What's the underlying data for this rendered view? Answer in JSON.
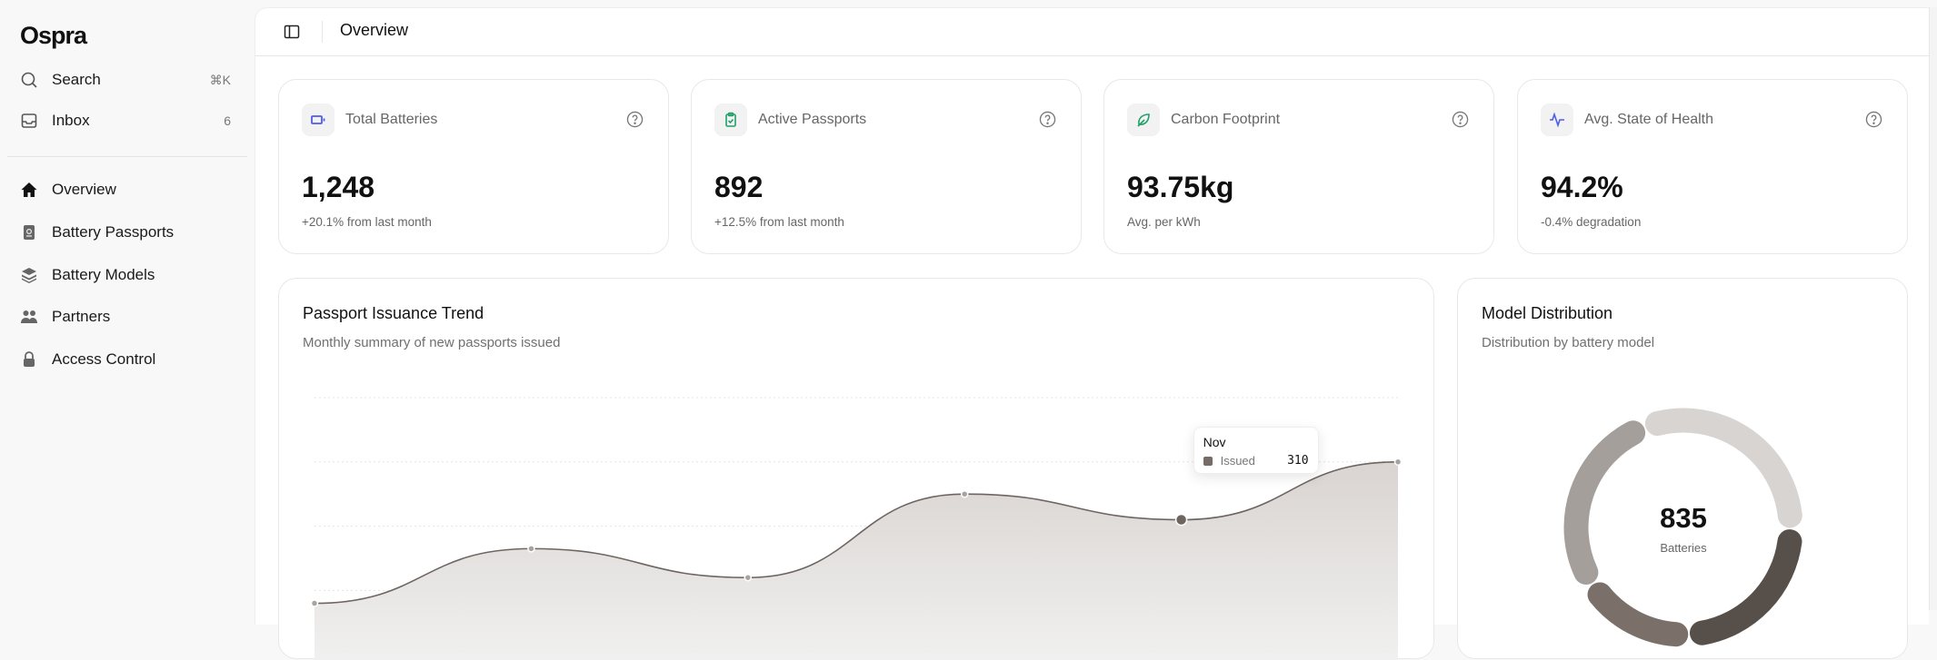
{
  "brand": {
    "name": "Ospra"
  },
  "sidebar": {
    "search": {
      "label": "Search",
      "shortcut": "⌘K"
    },
    "inbox": {
      "label": "Inbox",
      "count": "6"
    },
    "items": [
      {
        "label": "Overview",
        "icon": "home-icon",
        "active": true
      },
      {
        "label": "Battery Passports",
        "icon": "passport-icon"
      },
      {
        "label": "Battery Models",
        "icon": "layers-icon"
      },
      {
        "label": "Partners",
        "icon": "users-icon"
      },
      {
        "label": "Access Control",
        "icon": "lock-icon"
      }
    ]
  },
  "header": {
    "title": "Overview"
  },
  "stats": [
    {
      "label": "Total Batteries",
      "value": "1,248",
      "sub": "+20.1% from last month",
      "icon": "battery-icon",
      "color": "#4f5bea"
    },
    {
      "label": "Active Passports",
      "value": "892",
      "sub": "+12.5% from last month",
      "icon": "clipboard-check-icon",
      "color": "#22a06b"
    },
    {
      "label": "Carbon Footprint",
      "value": "93.75kg",
      "sub": "Avg. per kWh",
      "icon": "leaf-icon",
      "color": "#22a06b"
    },
    {
      "label": "Avg. State of Health",
      "value": "94.2%",
      "sub": "-0.4% degradation",
      "icon": "activity-icon",
      "color": "#4f5bea"
    }
  ],
  "trend": {
    "title": "Passport Issuance Trend",
    "subtitle": "Monthly summary of new passports issued",
    "tooltip": {
      "month": "Nov",
      "series": "Issued",
      "value": "310"
    }
  },
  "distribution": {
    "title": "Model Distribution",
    "subtitle": "Distribution by battery model",
    "total": "835",
    "total_label": "Batteries"
  },
  "chart_data": [
    {
      "type": "area",
      "series": [
        {
          "name": "Issued",
          "values": [
            180,
            265,
            220,
            350,
            310,
            400
          ]
        }
      ],
      "highlight_index": 4,
      "ylim": [
        0,
        500
      ],
      "grid": true,
      "gridlines": [
        200,
        300,
        400,
        500
      ],
      "color": "#756c67"
    },
    {
      "type": "pie",
      "donut": true,
      "segments": [
        {
          "share": 31,
          "color": "#d8d4d1"
        },
        {
          "share": 24,
          "color": "#574f4a"
        },
        {
          "share": 17,
          "color": "#7a6f69"
        },
        {
          "share": 28,
          "color": "#a59f9b"
        }
      ]
    }
  ]
}
